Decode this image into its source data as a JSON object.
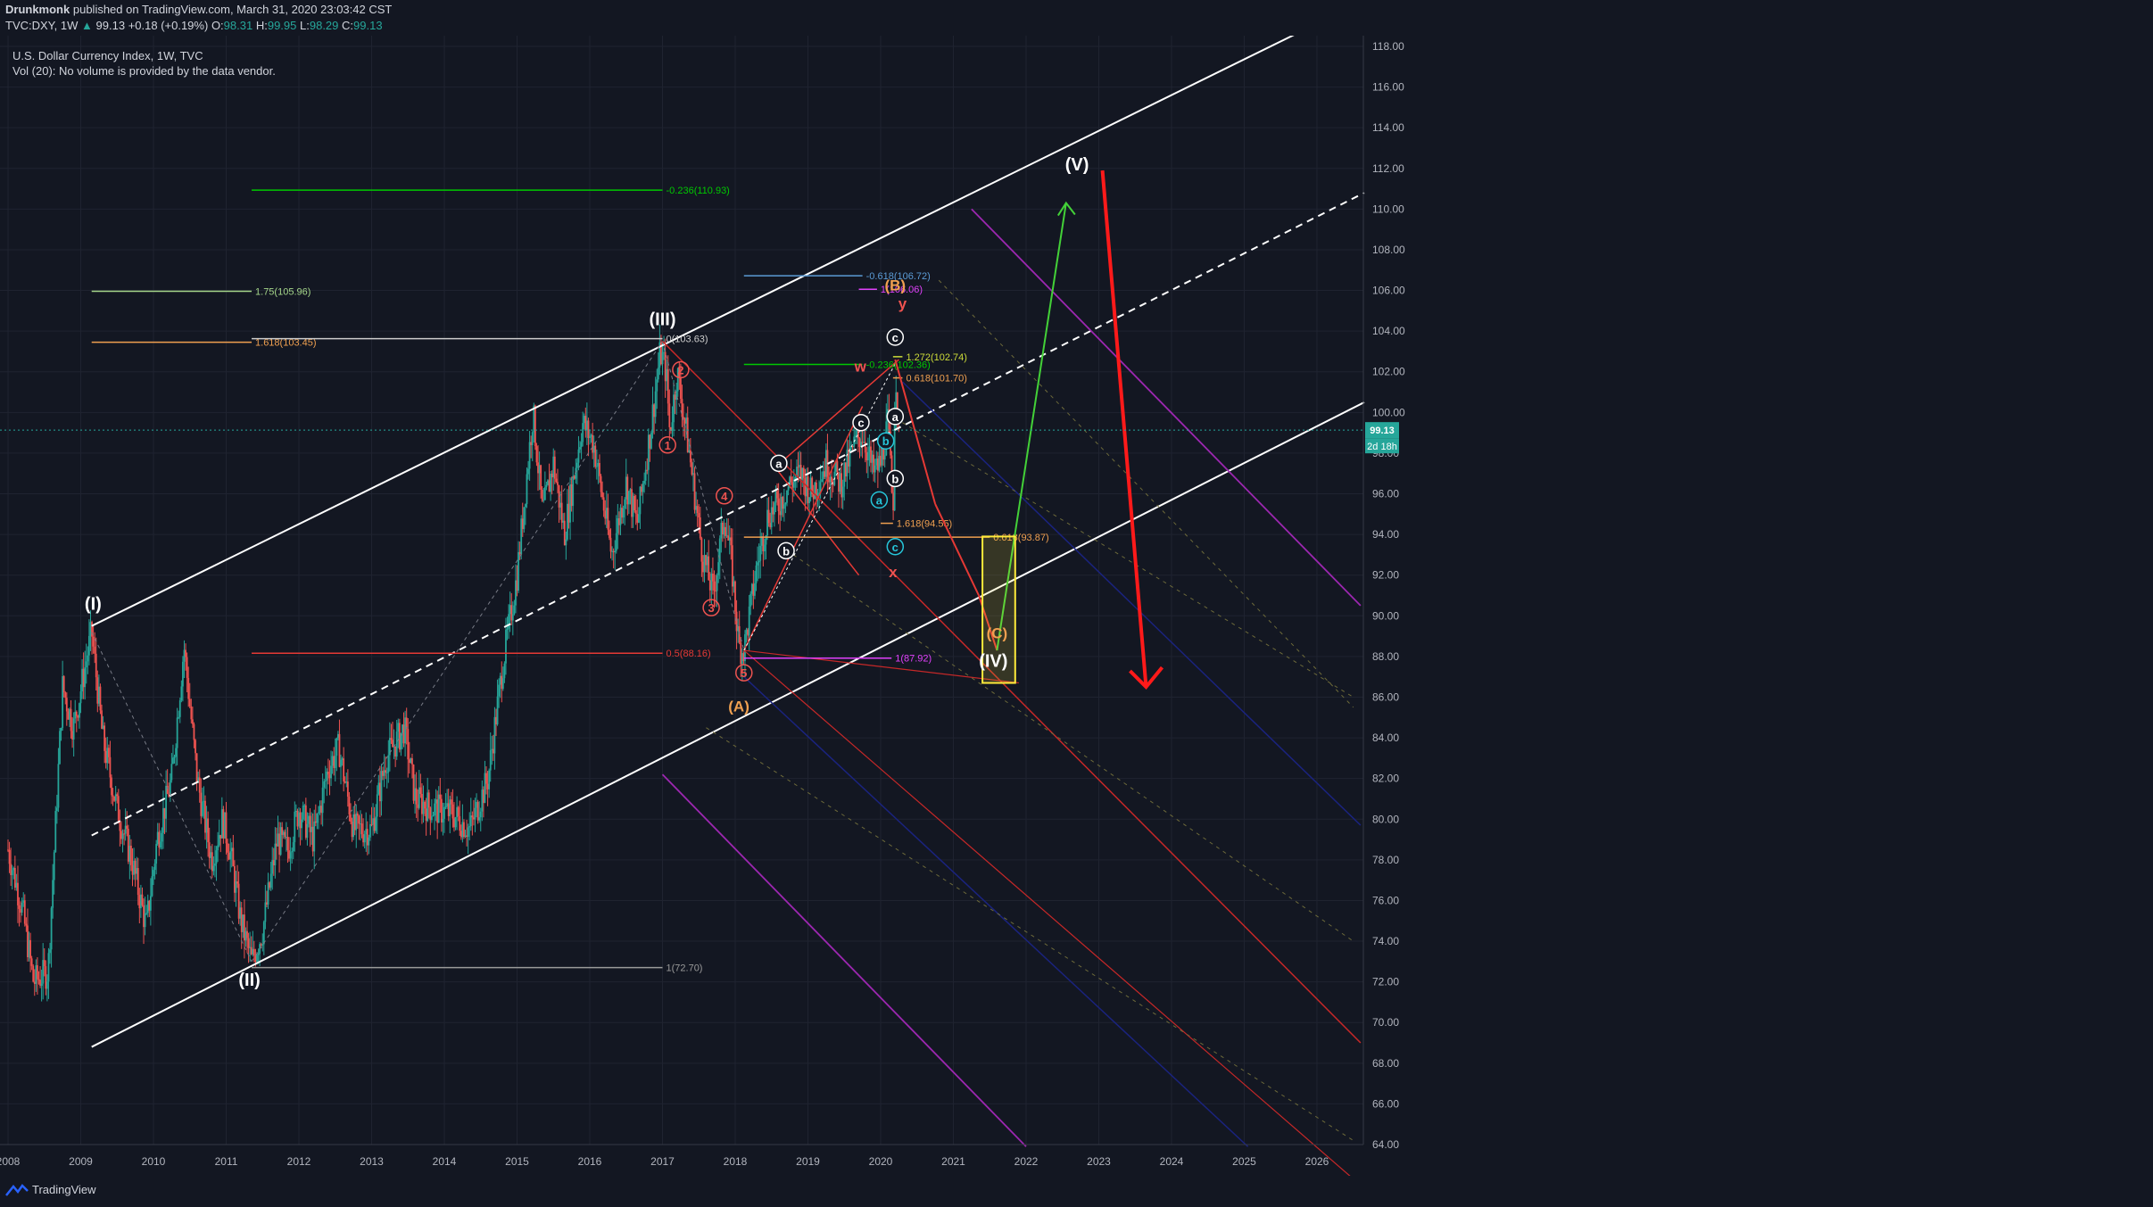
{
  "header": {
    "author": "Drunkmonk",
    "published": "published on TradingView.com, March 31, 2020 23:03:42 CST",
    "symbol": "TVC:DXY, 1W",
    "price": "99.13",
    "change": "+0.18 (+0.19%)",
    "open_label": "O:",
    "open": "98.31",
    "high_label": "H:",
    "high": "99.95",
    "low_label": "L:",
    "low": "98.29",
    "close_label": "C:",
    "close": "99.13"
  },
  "legend": {
    "title": "U.S. Dollar Currency Index, 1W, TVC",
    "volume_note": "Vol (20): No volume is provided by the data vendor."
  },
  "price_badge": {
    "value": "99.13",
    "countdown": "2d 18h"
  },
  "footer": {
    "brand": "TradingView"
  },
  "colors": {
    "background": "#131722",
    "up": "#26a69a",
    "down": "#ef5350",
    "grid": "#2a2e39"
  },
  "chart_data": {
    "type": "candlestick",
    "title": "U.S. Dollar Currency Index, 1W, TVC",
    "x_ticks": [
      "2008",
      "2009",
      "2010",
      "2011",
      "2012",
      "2013",
      "2014",
      "2015",
      "2016",
      "2017",
      "2018",
      "2019",
      "2020",
      "2021",
      "2022",
      "2023",
      "2024",
      "2025",
      "2026"
    ],
    "y_ticks": [
      "64.00",
      "66.00",
      "68.00",
      "70.00",
      "72.00",
      "74.00",
      "76.00",
      "78.00",
      "80.00",
      "82.00",
      "84.00",
      "86.00",
      "88.00",
      "90.00",
      "92.00",
      "94.00",
      "96.00",
      "98.00",
      "100.00",
      "102.00",
      "104.00",
      "106.00",
      "108.00",
      "110.00",
      "112.00",
      "114.00",
      "116.00",
      "118.00"
    ],
    "ylim": [
      63.8,
      119.6
    ],
    "xlim": [
      2008.0,
      2026.65
    ],
    "last_price": 99.13,
    "price_path": [
      [
        2008.0,
        78.5
      ],
      [
        2008.2,
        75.5
      ],
      [
        2008.35,
        72.0
      ],
      [
        2008.55,
        72.5
      ],
      [
        2008.75,
        86.5
      ],
      [
        2008.9,
        84.5
      ],
      [
        2009.15,
        89.2
      ],
      [
        2009.3,
        84.0
      ],
      [
        2009.5,
        80.5
      ],
      [
        2009.7,
        78.0
      ],
      [
        2009.9,
        74.7
      ],
      [
        2010.05,
        79.0
      ],
      [
        2010.25,
        82.0
      ],
      [
        2010.42,
        88.5
      ],
      [
        2010.6,
        82.0
      ],
      [
        2010.8,
        78.0
      ],
      [
        2010.95,
        80.0
      ],
      [
        2011.05,
        78.5
      ],
      [
        2011.2,
        75.0
      ],
      [
        2011.35,
        73.0
      ],
      [
        2011.5,
        74.5
      ],
      [
        2011.7,
        79.0
      ],
      [
        2011.85,
        78.5
      ],
      [
        2012.0,
        80.5
      ],
      [
        2012.2,
        79.0
      ],
      [
        2012.4,
        82.5
      ],
      [
        2012.55,
        83.5
      ],
      [
        2012.75,
        79.5
      ],
      [
        2013.0,
        79.5
      ],
      [
        2013.2,
        83.0
      ],
      [
        2013.45,
        84.5
      ],
      [
        2013.6,
        81.0
      ],
      [
        2013.85,
        80.5
      ],
      [
        2014.1,
        80.3
      ],
      [
        2014.35,
        79.5
      ],
      [
        2014.6,
        82.0
      ],
      [
        2014.8,
        87.5
      ],
      [
        2015.0,
        92.0
      ],
      [
        2015.15,
        97.5
      ],
      [
        2015.22,
        100.0
      ],
      [
        2015.35,
        95.0
      ],
      [
        2015.5,
        97.5
      ],
      [
        2015.65,
        94.0
      ],
      [
        2015.9,
        99.5
      ],
      [
        2016.05,
        98.5
      ],
      [
        2016.3,
        93.0
      ],
      [
        2016.5,
        96.5
      ],
      [
        2016.65,
        94.5
      ],
      [
        2016.85,
        99.5
      ],
      [
        2016.97,
        103.0
      ],
      [
        2017.05,
        102.0
      ],
      [
        2017.1,
        99.0
      ],
      [
        2017.2,
        102.0
      ],
      [
        2017.35,
        98.5
      ],
      [
        2017.55,
        93.0
      ],
      [
        2017.7,
        91.0
      ],
      [
        2017.85,
        95.0
      ],
      [
        2017.95,
        92.5
      ],
      [
        2018.05,
        88.5
      ],
      [
        2018.12,
        88.3
      ],
      [
        2018.3,
        92.5
      ],
      [
        2018.45,
        95.0
      ],
      [
        2018.6,
        95.5
      ],
      [
        2018.75,
        96.5
      ],
      [
        2018.9,
        97.0
      ],
      [
        2019.05,
        96.0
      ],
      [
        2019.25,
        97.5
      ],
      [
        2019.45,
        96.5
      ],
      [
        2019.65,
        98.5
      ],
      [
        2019.75,
        99.0
      ],
      [
        2019.9,
        97.0
      ],
      [
        2020.0,
        97.5
      ],
      [
        2020.1,
        99.5
      ],
      [
        2020.17,
        95.0
      ],
      [
        2020.2,
        102.5
      ],
      [
        2020.25,
        99.13
      ]
    ],
    "channels": [
      {
        "name": "upper",
        "from": [
          2009.15,
          89.5
        ],
        "to": [
          2026.5,
          120.0
        ],
        "color": "#ffffff",
        "dashed": false
      },
      {
        "name": "middle",
        "from": [
          2009.15,
          79.2
        ],
        "to": [
          2026.65,
          110.8
        ],
        "color": "#ffffff",
        "dashed": true
      },
      {
        "name": "lower",
        "from": [
          2009.15,
          68.8
        ],
        "to": [
          2026.65,
          100.5
        ],
        "color": "#ffffff",
        "dashed": false
      }
    ],
    "fib_levels": [
      {
        "label": "-0.236(110.93)",
        "value": 110.93,
        "x": [
          2011.35,
          2017.0
        ],
        "color": "#00c800"
      },
      {
        "label": "1.75(105.96)",
        "value": 105.96,
        "x": [
          2009.15,
          2011.35
        ],
        "color": "#a5d68a"
      },
      {
        "label": "1.618(103.45)",
        "value": 103.45,
        "x": [
          2009.15,
          2011.35
        ],
        "color": "#f0a050"
      },
      {
        "label": "0.5(88.16)",
        "value": 88.16,
        "x": [
          2011.35,
          2017.0
        ],
        "color": "#e53935"
      },
      {
        "label": "1(72.70)",
        "value": 72.7,
        "x": [
          2011.35,
          2017.0
        ],
        "color": "#9a9a9a"
      },
      {
        "label": "0(103.63)",
        "value": 103.63,
        "x": [
          2011.35,
          2017.0
        ],
        "color": "#cccccc"
      },
      {
        "label": "-0.618(106.72)",
        "value": 106.72,
        "x": [
          2018.12,
          2019.75
        ],
        "color": "#5b9bd5"
      },
      {
        "label": "1(106.06)",
        "value": 106.06,
        "x": [
          2019.7,
          2019.95
        ],
        "color": "#e040fb"
      },
      {
        "label": "-0.236(102.36)",
        "value": 102.36,
        "x": [
          2018.12,
          2019.75
        ],
        "color": "#00c800"
      },
      {
        "label": "1.272(102.74)",
        "value": 102.74,
        "x": [
          2020.17,
          2020.3
        ],
        "color": "#cddc39"
      },
      {
        "label": "0.618(101.70)",
        "value": 101.7,
        "x": [
          2020.17,
          2020.3
        ],
        "color": "#f0a050"
      },
      {
        "label": "1.618(94.55)",
        "value": 94.55,
        "x": [
          2020.0,
          2020.17
        ],
        "color": "#f0a050"
      },
      {
        "label": "0.618(93.87)",
        "value": 93.87,
        "x": [
          2018.12,
          2021.5
        ],
        "color": "#f0a050"
      },
      {
        "label": "1(87.92)",
        "value": 87.92,
        "x": [
          2018.12,
          2020.15
        ],
        "color": "#e040fb"
      }
    ],
    "wave_labels": [
      {
        "text": "(I)",
        "x": 2009.17,
        "y": 90.3,
        "color": "#ffffff"
      },
      {
        "text": "(II)",
        "x": 2011.32,
        "y": 71.8,
        "color": "#ffffff"
      },
      {
        "text": "(III)",
        "x": 2017.0,
        "y": 104.3,
        "color": "#ffffff"
      },
      {
        "text": "(IV)",
        "x": 2021.55,
        "y": 87.5,
        "color": "#ffffff"
      },
      {
        "text": "(V)",
        "x": 2022.7,
        "y": 111.9,
        "color": "#ffffff"
      },
      {
        "text": "(A)",
        "x": 2018.05,
        "y": 85.3,
        "color": "#f0a050"
      },
      {
        "text": "(B)",
        "x": 2020.2,
        "y": 106.0,
        "color": "#f0a050"
      },
      {
        "text": "(C)",
        "x": 2021.6,
        "y": 88.9,
        "color": "#f0a050"
      },
      {
        "text": "w",
        "x": 2019.72,
        "y": 102.0,
        "color": "#ef5350"
      },
      {
        "text": "x",
        "x": 2020.17,
        "y": 91.9,
        "color": "#ef5350"
      },
      {
        "text": "y",
        "x": 2020.3,
        "y": 105.1,
        "color": "#ef5350"
      }
    ],
    "circle_labels": [
      {
        "text": "1",
        "x": 2017.07,
        "y": 98.4,
        "style": "red"
      },
      {
        "text": "2",
        "x": 2017.25,
        "y": 102.1,
        "style": "red"
      },
      {
        "text": "3",
        "x": 2017.67,
        "y": 90.4,
        "style": "red"
      },
      {
        "text": "4",
        "x": 2017.85,
        "y": 95.9,
        "style": "red"
      },
      {
        "text": "5",
        "x": 2018.12,
        "y": 87.2,
        "style": "red"
      },
      {
        "text": "a",
        "x": 2018.6,
        "y": 97.5,
        "style": "white"
      },
      {
        "text": "b",
        "x": 2018.7,
        "y": 93.2,
        "style": "white"
      },
      {
        "text": "c",
        "x": 2019.73,
        "y": 99.5,
        "style": "white"
      },
      {
        "text": "a",
        "x": 2019.98,
        "y": 95.7,
        "style": "cyan"
      },
      {
        "text": "b",
        "x": 2020.07,
        "y": 98.6,
        "style": "cyan"
      },
      {
        "text": "c",
        "x": 2020.2,
        "y": 93.4,
        "style": "cyan"
      },
      {
        "text": "a",
        "x": 2020.2,
        "y": 99.8,
        "style": "white"
      },
      {
        "text": "b",
        "x": 2020.2,
        "y": 96.75,
        "style": "white"
      },
      {
        "text": "c",
        "x": 2020.2,
        "y": 103.7,
        "style": "white"
      }
    ],
    "projection": {
      "red_path": [
        [
          2020.2,
          102.6
        ],
        [
          2020.75,
          95.5
        ],
        [
          2021.35,
          91.0
        ],
        [
          2021.6,
          88.3
        ]
      ],
      "green_path": [
        [
          2021.6,
          88.3
        ],
        [
          2022.55,
          110.3
        ]
      ],
      "red_arrow": [
        [
          2023.05,
          111.9
        ],
        [
          2023.65,
          86.5
        ]
      ],
      "box": [
        [
          2021.4,
          93.9
        ],
        [
          2021.85,
          86.7
        ]
      ]
    },
    "pitchfork": {
      "upper_red": [
        [
          2017.0,
          103.5
        ],
        [
          2026.6,
          69.0
        ]
      ],
      "median_red": [
        [
          2018.12,
          88.3
        ],
        [
          2021.9,
          86.7
        ]
      ],
      "blue_upper": [
        [
          2020.3,
          101.5
        ],
        [
          2026.6,
          79.7
        ]
      ],
      "blue_lower": [
        [
          2018.12,
          87.0
        ],
        [
          2025.05,
          63.9
        ]
      ],
      "purple_upper": [
        [
          2021.25,
          110.0
        ],
        [
          2026.6,
          90.5
        ]
      ],
      "purple_lower": [
        [
          2017.0,
          82.2
        ],
        [
          2022.0,
          63.9
        ]
      ]
    }
  }
}
